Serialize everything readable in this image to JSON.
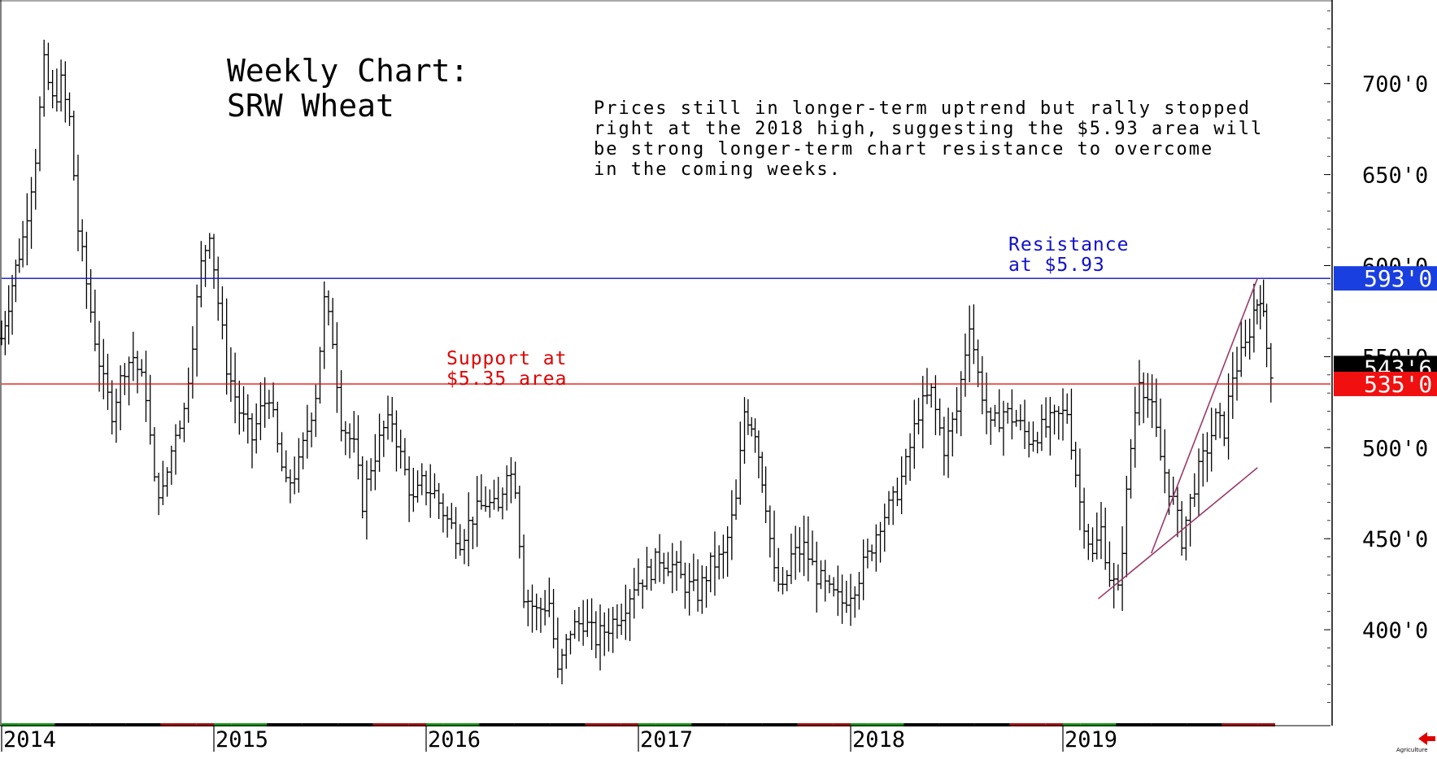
{
  "chart_data": {
    "type": "bar",
    "style": "ohlc-weekly",
    "title": [
      "Weekly Chart:",
      "SRW Wheat"
    ],
    "commentary": [
      "Prices still in longer-term uptrend but rally stopped",
      "right at the 2018 high, suggesting the $5.93 area will",
      "be strong longer-term chart resistance to overcome",
      "in the coming weeks."
    ],
    "y_ticks": [
      {
        "value": 400,
        "label": "400'0"
      },
      {
        "value": 450,
        "label": "450'0"
      },
      {
        "value": 500,
        "label": "500'0"
      },
      {
        "value": 550,
        "label": "550'0"
      },
      {
        "value": 600,
        "label": "600'0"
      },
      {
        "value": 650,
        "label": "650'0"
      },
      {
        "value": 700,
        "label": "700'0"
      }
    ],
    "ylim": [
      350,
      745
    ],
    "x_years": [
      "2014",
      "2015",
      "2016",
      "2017",
      "2018",
      "2019"
    ],
    "grid": false,
    "resistance": {
      "value": 593,
      "tag": "593'0",
      "label": [
        "Resistance",
        "at $5.93"
      ],
      "color": "#1010cc",
      "tag_bg": "#1a3fe0"
    },
    "support": {
      "value": 535,
      "tag": "535'0",
      "label": [
        "Support at",
        "$5.35 area"
      ],
      "color": "#e00000",
      "tag_bg": "#f01010"
    },
    "last_price": {
      "value": 543.75,
      "tag": "543'6",
      "tag_bg": "#000000"
    },
    "trendlines": [
      {
        "from": [
          "2019-03",
          417
        ],
        "to": [
          "2019-12",
          489
        ]
      },
      {
        "from": [
          "2019-06",
          442
        ],
        "to": [
          "2019-12",
          593
        ]
      }
    ],
    "weekly_path": [
      [
        2014.0,
        560
      ],
      [
        2014.05,
        590
      ],
      [
        2014.1,
        615
      ],
      [
        2014.16,
        660
      ],
      [
        2014.2,
        710
      ],
      [
        2014.24,
        690
      ],
      [
        2014.28,
        700
      ],
      [
        2014.32,
        680
      ],
      [
        2014.36,
        620
      ],
      [
        2014.4,
        590
      ],
      [
        2014.44,
        560
      ],
      [
        2014.48,
        535
      ],
      [
        2014.52,
        520
      ],
      [
        2014.58,
        545
      ],
      [
        2014.62,
        550
      ],
      [
        2014.68,
        530
      ],
      [
        2014.72,
        480
      ],
      [
        2014.76,
        475
      ],
      [
        2014.82,
        510
      ],
      [
        2014.86,
        520
      ],
      [
        2014.9,
        560
      ],
      [
        2014.94,
        600
      ],
      [
        2014.98,
        620
      ],
      [
        2015.02,
        580
      ],
      [
        2015.06,
        545
      ],
      [
        2015.12,
        520
      ],
      [
        2015.18,
        505
      ],
      [
        2015.22,
        520
      ],
      [
        2015.26,
        530
      ],
      [
        2015.3,
        500
      ],
      [
        2015.34,
        478
      ],
      [
        2015.4,
        490
      ],
      [
        2015.44,
        510
      ],
      [
        2015.48,
        530
      ],
      [
        2015.52,
        580
      ],
      [
        2015.56,
        560
      ],
      [
        2015.6,
        515
      ],
      [
        2015.66,
        500
      ],
      [
        2015.7,
        470
      ],
      [
        2015.74,
        490
      ],
      [
        2015.8,
        510
      ],
      [
        2015.84,
        515
      ],
      [
        2015.88,
        495
      ],
      [
        2015.94,
        470
      ],
      [
        2015.98,
        480
      ],
      [
        2016.04,
        475
      ],
      [
        2016.1,
        460
      ],
      [
        2016.16,
        450
      ],
      [
        2016.22,
        462
      ],
      [
        2016.28,
        470
      ],
      [
        2016.34,
        465
      ],
      [
        2016.38,
        490
      ],
      [
        2016.42,
        480
      ],
      [
        2016.46,
        420
      ],
      [
        2016.52,
        410
      ],
      [
        2016.58,
        415
      ],
      [
        2016.62,
        375
      ],
      [
        2016.68,
        400
      ],
      [
        2016.74,
        405
      ],
      [
        2016.8,
        395
      ],
      [
        2016.86,
        402
      ],
      [
        2016.92,
        410
      ],
      [
        2016.98,
        425
      ],
      [
        2017.04,
        430
      ],
      [
        2017.1,
        440
      ],
      [
        2017.16,
        435
      ],
      [
        2017.22,
        425
      ],
      [
        2017.28,
        420
      ],
      [
        2017.34,
        435
      ],
      [
        2017.4,
        440
      ],
      [
        2017.46,
        470
      ],
      [
        2017.5,
        520
      ],
      [
        2017.55,
        510
      ],
      [
        2017.6,
        470
      ],
      [
        2017.64,
        430
      ],
      [
        2017.68,
        420
      ],
      [
        2017.72,
        440
      ],
      [
        2017.78,
        445
      ],
      [
        2017.84,
        430
      ],
      [
        2017.9,
        420
      ],
      [
        2017.96,
        415
      ],
      [
        2018.02,
        425
      ],
      [
        2018.08,
        440
      ],
      [
        2018.14,
        460
      ],
      [
        2018.2,
        470
      ],
      [
        2018.26,
        490
      ],
      [
        2018.32,
        520
      ],
      [
        2018.38,
        530
      ],
      [
        2018.44,
        500
      ],
      [
        2018.5,
        520
      ],
      [
        2018.56,
        570
      ],
      [
        2018.6,
        540
      ],
      [
        2018.66,
        510
      ],
      [
        2018.72,
        520
      ],
      [
        2018.78,
        515
      ],
      [
        2018.84,
        505
      ],
      [
        2018.9,
        510
      ],
      [
        2018.96,
        515
      ],
      [
        2019.02,
        520
      ],
      [
        2019.08,
        470
      ],
      [
        2019.14,
        440
      ],
      [
        2019.18,
        455
      ],
      [
        2019.22,
        430
      ],
      [
        2019.26,
        420
      ],
      [
        2019.32,
        500
      ],
      [
        2019.36,
        540
      ],
      [
        2019.42,
        520
      ],
      [
        2019.46,
        495
      ],
      [
        2019.52,
        470
      ],
      [
        2019.56,
        450
      ],
      [
        2019.62,
        480
      ],
      [
        2019.68,
        500
      ],
      [
        2019.72,
        515
      ],
      [
        2019.76,
        510
      ],
      [
        2019.8,
        540
      ],
      [
        2019.86,
        555
      ],
      [
        2019.9,
        575
      ],
      [
        2019.93,
        585
      ],
      [
        2019.96,
        555
      ],
      [
        2019.98,
        543
      ]
    ]
  },
  "footer": {
    "brand": "Agriculture"
  }
}
